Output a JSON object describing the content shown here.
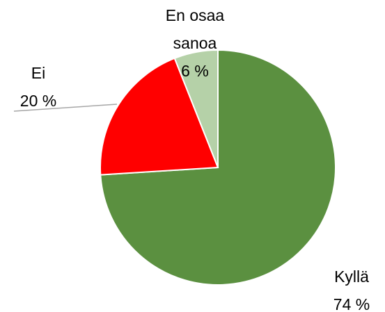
{
  "chart_data": {
    "type": "pie",
    "categories": [
      "Kyllä",
      "Ei",
      "En osaa sanoa"
    ],
    "values": [
      74,
      20,
      6
    ],
    "value_labels": [
      "74 %",
      "20 %",
      "6 %"
    ],
    "colors": [
      "#5b9040",
      "#ff0000",
      "#b5d1a8"
    ]
  }
}
